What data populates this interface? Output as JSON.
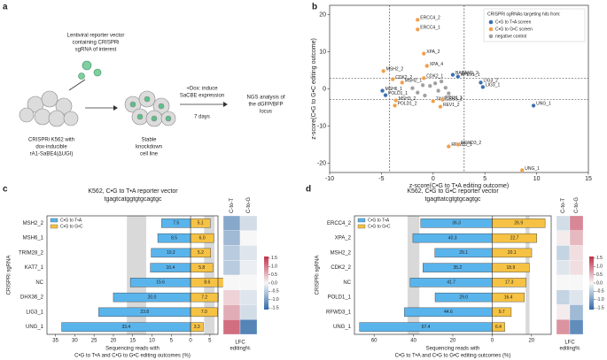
{
  "panel_labels": [
    "a",
    "b",
    "c",
    "d"
  ],
  "panel_a": {
    "vector_text": [
      "Lentiviral reporter vector",
      "containing CRISPRi",
      "sgRNA of interest"
    ],
    "cell_text": [
      "CRISPRi K562 with",
      "dox-inducible",
      "rA1-SaBE4(ΔUGI)"
    ],
    "knockdown_text": [
      "Stable",
      "knockdown",
      "cell line"
    ],
    "treatment_text": [
      "+Dox: induce",
      "SaCBE expression"
    ],
    "duration": "7 days",
    "readout_text": [
      "NGS analysis of",
      "the dGFP/BFP",
      "locus"
    ]
  },
  "chart_data": [
    {
      "type": "scatter",
      "x_label": "z-score(C•G to T•A editing outcome)",
      "y_label": "z-score(C•G to G•C editing outcome)",
      "xlim": [
        -10,
        15
      ],
      "ylim": [
        -22.5,
        22.5
      ],
      "xticks": [
        -10,
        -5,
        0,
        5,
        10,
        15
      ],
      "yticks": [
        -20,
        -10,
        0,
        10,
        20
      ],
      "xlines": [
        -4.2,
        3
      ],
      "ylines": [
        2.8,
        -2.8
      ],
      "legend_title": "CRISPRi sgRNAs targeting hits from:",
      "legend": "upper right",
      "series": [
        {
          "name": "C•G to T•A screen",
          "color": "#3a6fb0",
          "x": [
            -4.9,
            -4.6,
            4.6,
            4.8,
            9.7,
            1.9,
            2.4
          ],
          "values": [
            -0.5,
            -1.7,
            1.7,
            0.5,
            -4.5,
            3.8,
            3.3
          ],
          "point_labels": [
            "MSH6_1",
            "POLD1_1",
            "LIG3_2",
            "LIG3_1",
            "UNG_1",
            "BABAM1_2",
            "APEX1_1"
          ]
        },
        {
          "name": "C•G to G•C screen",
          "color": "#f0a04b",
          "x": [
            -1.5,
            -1.5,
            -0.9,
            -0.6,
            -4.8,
            -3.9,
            -3.0,
            -0.9,
            -3.6,
            -3.7,
            0,
            0.9,
            0.7,
            1.5,
            2.4,
            8.6
          ],
          "values": [
            18.6,
            16,
            9.5,
            6.2,
            4.8,
            2.6,
            1.7,
            2.9,
            -3.1,
            -4.5,
            -3.3,
            -2.9,
            -4.8,
            -15.5,
            -15,
            -21.9
          ],
          "point_labels": [
            "ERCC4_2",
            "ERCC4_1",
            "XPA_2",
            "XPA_4",
            "MSH2_2",
            "CDK2_2",
            "MSH2_1",
            "CDK2_1",
            "MSH3_2",
            "POLD1_2",
            "TIMELESS_2",
            "POLH_1",
            "REV1_2",
            "RFWD3_1",
            "RFWD3_2",
            "UNG_1"
          ]
        },
        {
          "name": "negative control",
          "color": "#a0a0a0",
          "x": [
            -1,
            0.5,
            -0.3,
            1.2,
            -1.5,
            0.2,
            -0.8,
            1.5,
            -2,
            0.8
          ],
          "values": [
            1,
            -0.5,
            0.8,
            0.3,
            -1,
            1.5,
            -1.8,
            -1.2,
            0.2,
            2
          ]
        }
      ]
    },
    {
      "type": "bar",
      "orientation": "horizontal",
      "title": "K562, C•G to T•A reporter vector",
      "subtitle": "tgagtcatggtgtgcagtgc",
      "y_label": "CRISPRi sgRNA",
      "x_label": [
        "Sequencing reads with",
        "C•G to T•A and C•G to G•C editing outcomes (%)"
      ],
      "categories": [
        "MSH2_2",
        "MSH6_1",
        "TRIM28_2",
        "KAT7_1",
        "NC",
        "DHX36_2",
        "LIG3_1",
        "UNG_1"
      ],
      "xlim": [
        -37.2,
        7.1
      ],
      "xticks": [
        {
          "value": -35,
          "label": "35"
        },
        {
          "value": -30,
          "label": "30"
        },
        {
          "value": -25,
          "label": "25"
        },
        {
          "value": -20,
          "label": "20"
        },
        {
          "value": -15,
          "label": "15"
        },
        {
          "value": -10,
          "label": "10"
        },
        {
          "value": -5,
          "label": "5"
        },
        0,
        5
      ],
      "shaded_ranges": [
        [
          -16.5,
          -11.5
        ],
        [
          3.5,
          6.2
        ]
      ],
      "legend": "upper left",
      "series": [
        {
          "name": "C•G to T•A",
          "color": "#5ab4ec",
          "values": [
            -7.5,
            -8.5,
            -10.2,
            -10.4,
            -15.6,
            -20,
            -23.8,
            -33.4
          ],
          "value_labels": [
            "7.5",
            "8.5",
            "10.2",
            "10.4",
            "15.6",
            "20.0",
            "23.8",
            "33.4"
          ]
        },
        {
          "name": "C•G to G•C",
          "color": "#f6c244",
          "values": [
            5.1,
            6,
            5.2,
            5.8,
            8.6,
            7.2,
            7,
            3.3
          ],
          "value_labels": [
            "5.1",
            "6.0",
            "5.2",
            "5.8",
            "8.6",
            "7.2",
            "7.0",
            "3.3"
          ]
        }
      ]
    },
    {
      "type": "heatmap",
      "columns": [
        "C-to-T",
        "C-to-G"
      ],
      "values": [
        [
          -0.9,
          -0.3
        ],
        [
          -0.7,
          0
        ],
        [
          -0.5,
          -0.2
        ],
        [
          -0.5,
          -0.1
        ],
        [
          0,
          0
        ],
        [
          0.3,
          -0.2
        ],
        [
          0.6,
          -0.3
        ],
        [
          1.1,
          -1.3
        ]
      ],
      "clim": [
        -1.6,
        1.6
      ],
      "colorbar_ticks": [
        1.5,
        {
          "value": 1,
          "label": "1.0"
        },
        0.5,
        {
          "value": 0,
          "label": "0.0"
        },
        -0.5,
        {
          "value": -1,
          "label": "-1.0"
        },
        -1.5
      ],
      "colorbar_label": [
        "LFC",
        "editing%"
      ]
    },
    {
      "type": "bar",
      "orientation": "horizontal",
      "title": "K562, C•G to G•C reporter vector",
      "subtitle": "tgagttatcgtgtgcagtgc",
      "y_label": "CRISPRi sgRNA",
      "x_label": [
        "Sequencing reads with",
        "C•G to T•A and C•G to G•C editing outcomes (%)"
      ],
      "categories": [
        "ERCC4_2",
        "XPA_2",
        "MSH2_2",
        "CDK2_2",
        "NC",
        "POLD1_1",
        "RFWD3_1",
        "UNG_1"
      ],
      "xlim": [
        -70,
        30
      ],
      "xticks": [
        {
          "value": -60,
          "label": "60"
        },
        {
          "value": -40,
          "label": "40"
        },
        {
          "value": -20,
          "label": "20"
        },
        0,
        20
      ],
      "shaded_ranges": [
        [
          -43,
          -37
        ],
        [
          17,
          19
        ]
      ],
      "legend": "upper left",
      "series": [
        {
          "name": "C•G to T•A",
          "color": "#5ab4ec",
          "values": [
            -36.3,
            -40.3,
            -29.1,
            -35.2,
            -41.7,
            -29,
            -44.6,
            -67.4
          ],
          "value_labels": [
            "36.3",
            "40.3",
            "29.1",
            "35.2",
            "41.7",
            "29.0",
            "44.6",
            "67.4"
          ]
        },
        {
          "name": "C•G to G•C",
          "color": "#f6c244",
          "values": [
            26.9,
            22.7,
            20.1,
            18.9,
            17.3,
            16.4,
            9.7,
            6.4
          ],
          "value_labels": [
            "26.9",
            "22.7",
            "20.1",
            "18.9",
            "17.3",
            "16.4",
            "9.7",
            "6.4"
          ]
        }
      ]
    },
    {
      "type": "heatmap",
      "columns": [
        "C-to-T",
        "C-to-G"
      ],
      "values": [
        [
          -0.3,
          0.9
        ],
        [
          0.1,
          0.5
        ],
        [
          -0.4,
          0.2
        ],
        [
          -0.2,
          0.2
        ],
        [
          0,
          0
        ],
        [
          -0.4,
          -0.2
        ],
        [
          0.1,
          -0.7
        ],
        [
          0.8,
          -1.2
        ]
      ],
      "clim": [
        -1.6,
        1.6
      ],
      "colorbar_ticks": [
        1.5,
        {
          "value": 1,
          "label": "1.0"
        },
        0.5,
        {
          "value": 0,
          "label": "0.0"
        },
        -0.5,
        {
          "value": -1,
          "label": "-1.0"
        },
        -1.5
      ],
      "colorbar_label": [
        "LFC",
        "editing%"
      ]
    }
  ]
}
